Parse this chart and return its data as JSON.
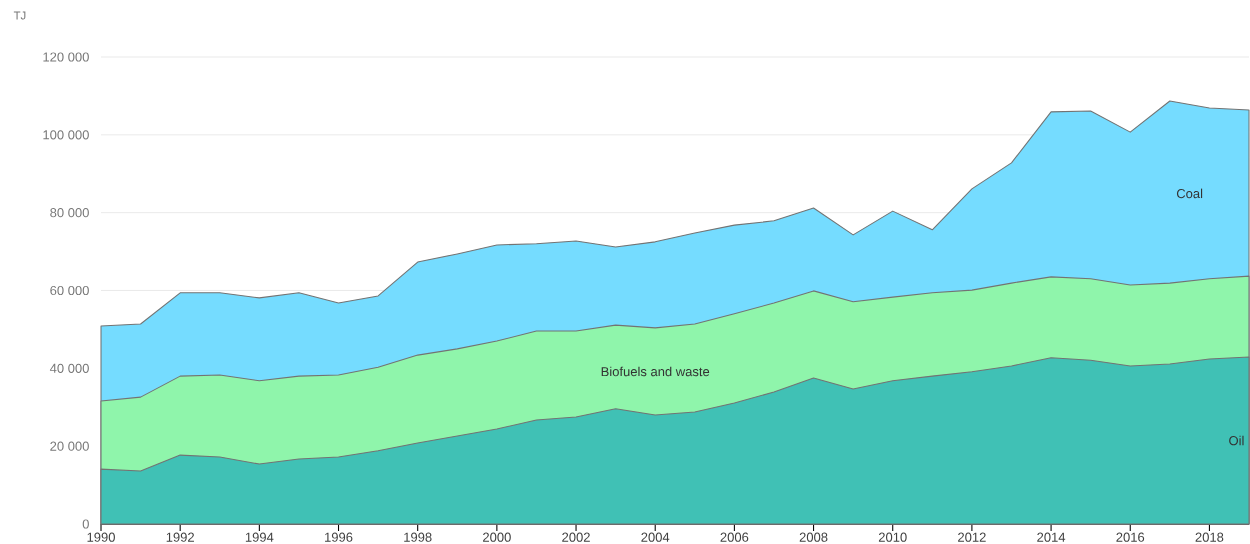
{
  "chart_data": {
    "type": "area",
    "stacked": true,
    "ylabel": "TJ",
    "x": [
      1990,
      1991,
      1992,
      1993,
      1994,
      1995,
      1996,
      1997,
      1998,
      1999,
      2000,
      2001,
      2002,
      2003,
      2004,
      2005,
      2006,
      2007,
      2008,
      2009,
      2010,
      2011,
      2012,
      2013,
      2014,
      2015,
      2016,
      2017,
      2018,
      2019
    ],
    "series": [
      {
        "name": "Oil",
        "color": "#40c1b5",
        "values": [
          14100,
          13600,
          17700,
          17200,
          15400,
          16700,
          17200,
          18800,
          20800,
          22600,
          24400,
          26700,
          27500,
          29600,
          28000,
          28800,
          31100,
          33900,
          37500,
          34700,
          36800,
          38000,
          39100,
          40600,
          42700,
          42100,
          40600,
          41100,
          42400,
          42900
        ]
      },
      {
        "name": "Biofuels and waste",
        "color": "#8ff5ab",
        "values": [
          17500,
          19000,
          20300,
          21100,
          21400,
          21300,
          21100,
          21500,
          22600,
          22400,
          22600,
          22900,
          22100,
          21500,
          22400,
          22600,
          22900,
          22900,
          22400,
          22400,
          21500,
          21400,
          21000,
          21300,
          20800,
          20900,
          20800,
          20800,
          20600,
          20800
        ]
      },
      {
        "name": "Coal",
        "color": "#75dcff",
        "values": [
          19300,
          18800,
          21400,
          21100,
          21300,
          21400,
          18500,
          18300,
          23900,
          24400,
          24700,
          22400,
          23100,
          20100,
          22100,
          23400,
          22800,
          21100,
          21300,
          17200,
          22100,
          16200,
          26000,
          30900,
          42400,
          43100,
          39300,
          46800,
          43900,
          42700
        ]
      }
    ],
    "xlim": [
      1990,
      2019
    ],
    "xticks": [
      1990,
      1992,
      1994,
      1996,
      1998,
      2000,
      2002,
      2004,
      2006,
      2008,
      2010,
      2012,
      2014,
      2016,
      2018
    ],
    "ylim": [
      0,
      120000
    ],
    "yticks": [
      {
        "value": 0,
        "label": "0"
      },
      {
        "value": 20000,
        "label": "20 000"
      },
      {
        "value": 40000,
        "label": "40 000"
      },
      {
        "value": 60000,
        "label": "60 000"
      },
      {
        "value": 80000,
        "label": "80 000"
      },
      {
        "value": 100000,
        "label": "100 000"
      },
      {
        "value": 120000,
        "label": "120 000"
      }
    ],
    "grid": "y",
    "legend": false
  }
}
